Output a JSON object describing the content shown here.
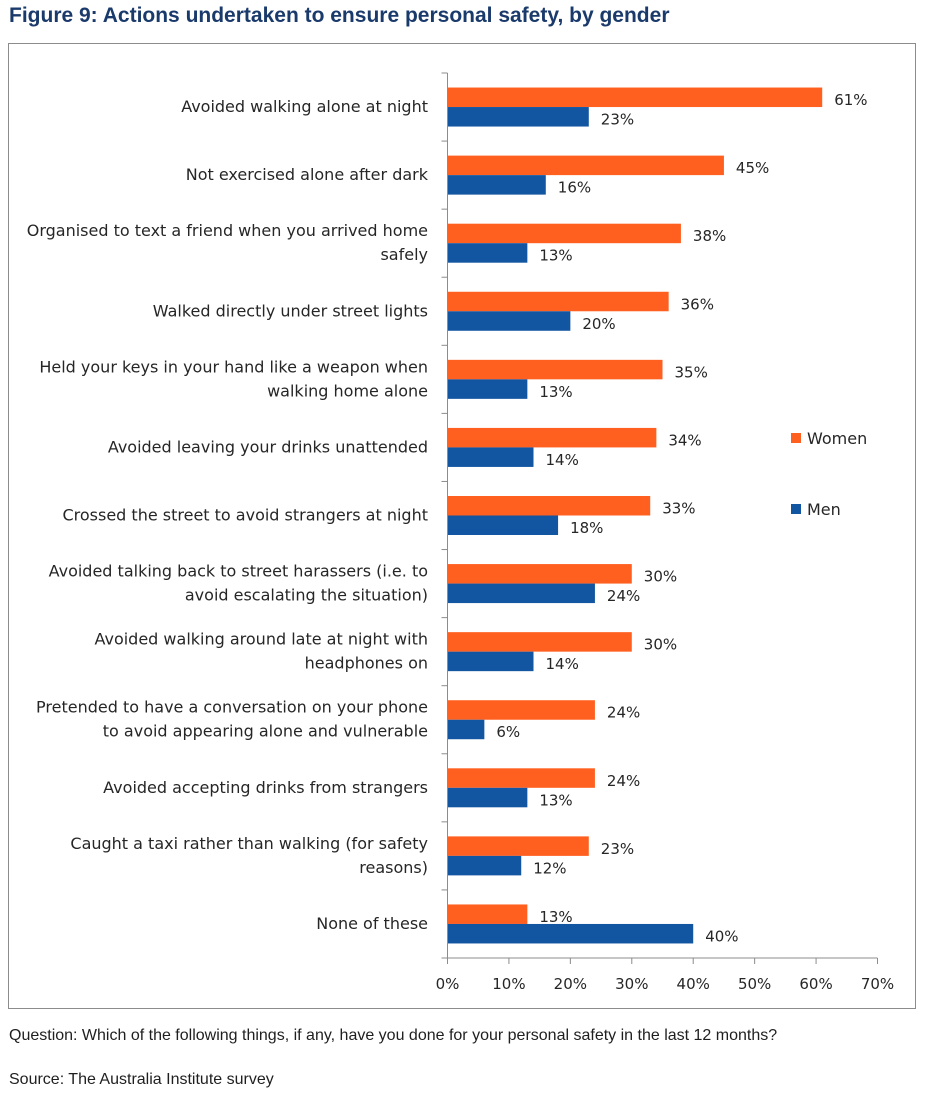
{
  "figure": {
    "title": "Figure 9: Actions undertaken to ensure personal safety, by gender",
    "question": "Question: Which of the following things, if any, have you done for your personal safety in the last 12 months?",
    "source": "Source: The Australia Institute survey"
  },
  "chart_data": {
    "type": "bar",
    "orientation": "horizontal",
    "categories": [
      [
        "Avoided walking alone at night"
      ],
      [
        "Not exercised alone after dark"
      ],
      [
        "Organised to text a friend when you arrived home",
        "safely"
      ],
      [
        "Walked directly under street lights"
      ],
      [
        "Held your keys in your hand like a weapon when",
        "walking home alone"
      ],
      [
        "Avoided leaving your drinks unattended"
      ],
      [
        "Crossed the street to avoid strangers at night"
      ],
      [
        "Avoided talking back to street harassers (i.e. to",
        "avoid escalating the situation)"
      ],
      [
        "Avoided walking around late at night with",
        "headphones on"
      ],
      [
        "Pretended to have a conversation on your phone",
        "to avoid appearing alone and vulnerable"
      ],
      [
        "Avoided accepting drinks from strangers"
      ],
      [
        "Caught a taxi rather than walking (for safety",
        "reasons)"
      ],
      [
        "None of these"
      ]
    ],
    "series": [
      {
        "name": "Women",
        "color": "#ff5f1f",
        "values": [
          61,
          45,
          38,
          36,
          35,
          34,
          33,
          30,
          30,
          24,
          24,
          23,
          13
        ],
        "labels": [
          "61%",
          "45%",
          "38%",
          "36%",
          "35%",
          "34%",
          "33%",
          "30%",
          "30%",
          "24%",
          "24%",
          "23%",
          "13%"
        ]
      },
      {
        "name": "Men",
        "color": "#1255a0",
        "values": [
          23,
          16,
          13,
          20,
          13,
          14,
          18,
          24,
          14,
          6,
          13,
          12,
          40
        ],
        "labels": [
          "23%",
          "16%",
          "13%",
          "20%",
          "13%",
          "14%",
          "18%",
          "24%",
          "14%",
          "6%",
          "13%",
          "12%",
          "40%"
        ]
      }
    ],
    "xlim": [
      0,
      70
    ],
    "xticks": [
      0,
      10,
      20,
      30,
      40,
      50,
      60,
      70
    ],
    "xtick_labels": [
      "0%",
      "10%",
      "20%",
      "30%",
      "40%",
      "50%",
      "60%",
      "70%"
    ],
    "grid": false,
    "legend_position": "right"
  }
}
